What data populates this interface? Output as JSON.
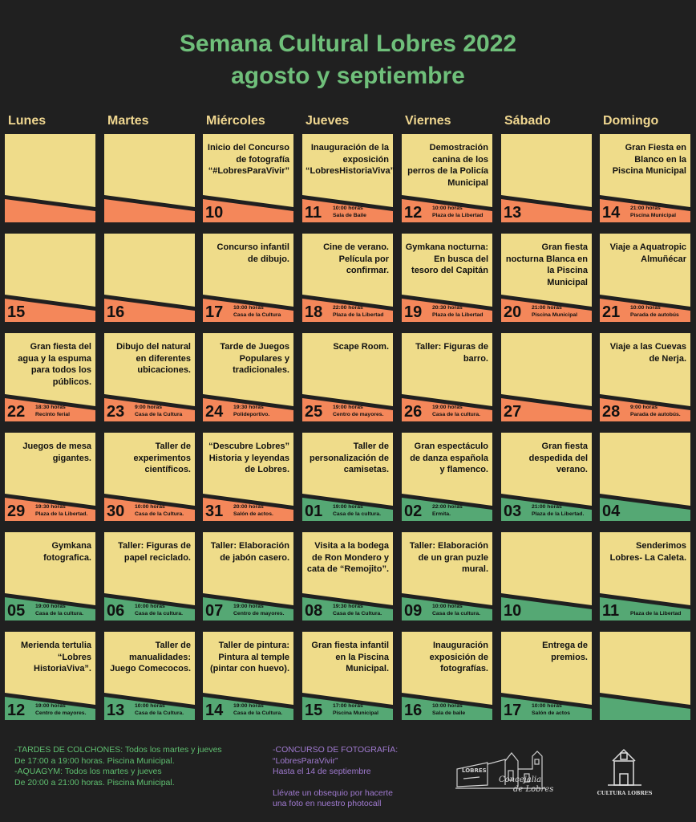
{
  "header": {
    "title": "Semana Cultural Lobres 2022",
    "subtitle": "agosto y septiembre"
  },
  "days": [
    "Lunes",
    "Martes",
    "Miércoles",
    "Jueves",
    "Viernes",
    "Sábado",
    "Domingo"
  ],
  "colors": {
    "yellow": "#efdc8a",
    "orange": "#f4875a",
    "green": "#55a874",
    "title_green": "#6fbf7a",
    "day_color": "#f0d790",
    "bg": "#202020"
  },
  "weeks": [
    [
      {
        "num": "",
        "color": "orange",
        "text": "",
        "time": "",
        "place": ""
      },
      {
        "num": "",
        "color": "orange",
        "text": "",
        "time": "",
        "place": ""
      },
      {
        "num": "10",
        "color": "orange",
        "text": "Inicio del Concurso de fotografía “#LobresParaVivir”",
        "time": "",
        "place": ""
      },
      {
        "num": "11",
        "color": "orange",
        "text": "Inauguración de la exposición “LobresHistoriaViva”",
        "time": "10:00 horas",
        "place": "Sala de Baile"
      },
      {
        "num": "12",
        "color": "orange",
        "text": "Demostración canina de los perros de la Policía Municipal",
        "time": "10:00 horas",
        "place": "Plaza de la Libertad"
      },
      {
        "num": "13",
        "color": "orange",
        "text": "",
        "time": "",
        "place": ""
      },
      {
        "num": "14",
        "color": "orange",
        "text": "Gran Fiesta en Blanco en la Piscina Municipal",
        "time": "21:00 horas",
        "place": "Piscina Municipal"
      }
    ],
    [
      {
        "num": "15",
        "color": "orange",
        "text": "",
        "time": "",
        "place": ""
      },
      {
        "num": "16",
        "color": "orange",
        "text": "",
        "time": "",
        "place": ""
      },
      {
        "num": "17",
        "color": "orange",
        "text": "Concurso infantil de dibujo.",
        "time": "10:00 horas",
        "place": "Casa de la Cultura"
      },
      {
        "num": "18",
        "color": "orange",
        "text": "Cine de verano. Película por confirmar.",
        "time": "22:00 horas",
        "place": "Plaza de la Libertad"
      },
      {
        "num": "19",
        "color": "orange",
        "text": "Gymkana nocturna: En busca del tesoro del Capitán",
        "time": "20:30 horas",
        "place": "Plaza de la Libertad"
      },
      {
        "num": "20",
        "color": "orange",
        "text": "Gran fiesta nocturna Blanca en la Piscina Municipal",
        "time": "21:00 horas",
        "place": "Piscina Municipal"
      },
      {
        "num": "21",
        "color": "orange",
        "text": "Viaje a Aquatropic Almuñécar",
        "time": "10:00 horas",
        "place": "Parada de autobús"
      }
    ],
    [
      {
        "num": "22",
        "color": "orange",
        "text": "Gran fiesta del agua y la espuma para todos los públicos.",
        "time": "18:30 horas",
        "place": "Recinto ferial"
      },
      {
        "num": "23",
        "color": "orange",
        "text": "Dibujo del natural en diferentes ubicaciones.",
        "time": "9:00 horas",
        "place": "Casa de la Cultura"
      },
      {
        "num": "24",
        "color": "orange",
        "text": "Tarde de Juegos Populares y tradicionales.",
        "time": "19:30 horas",
        "place": "Polideportivo."
      },
      {
        "num": "25",
        "color": "orange",
        "text": "Scape Room.",
        "time": "19:00 horas",
        "place": "Centro de mayores."
      },
      {
        "num": "26",
        "color": "orange",
        "text": "Taller: Figuras de barro.",
        "time": "19:00 horas",
        "place": "Casa de la cultura."
      },
      {
        "num": "27",
        "color": "orange",
        "text": "",
        "time": "",
        "place": ""
      },
      {
        "num": "28",
        "color": "orange",
        "text": "Viaje a las Cuevas de Nerja.",
        "time": "9:00 horas",
        "place": "Parada de autobús."
      }
    ],
    [
      {
        "num": "29",
        "color": "orange",
        "text": "Juegos de mesa gigantes.",
        "time": "19:30 horas",
        "place": "Plaza de la Libertad."
      },
      {
        "num": "30",
        "color": "orange",
        "text": "Taller de experimentos científicos.",
        "time": "10:00 horas",
        "place": "Casa de la Cultura."
      },
      {
        "num": "31",
        "color": "orange",
        "text": "“Descubre Lobres” Historia y leyendas de Lobres.",
        "time": "20:00 horas",
        "place": "Salón de actos."
      },
      {
        "num": "01",
        "color": "green",
        "text": "Taller de personalización de camisetas.",
        "time": "19:00 horas",
        "place": "Casa de la cultura."
      },
      {
        "num": "02",
        "color": "green",
        "text": "Gran espectáculo de danza española y flamenco.",
        "time": "22:00 horas",
        "place": "Ermita."
      },
      {
        "num": "03",
        "color": "green",
        "text": "Gran fiesta despedida del verano.",
        "time": "21:00 horas",
        "place": "Plaza de la Libertad."
      },
      {
        "num": "04",
        "color": "green",
        "text": "",
        "time": "",
        "place": ""
      }
    ],
    [
      {
        "num": "05",
        "color": "green",
        "text": "Gymkana fotografica.",
        "time": "19:00 horas",
        "place": "Casa de la cultura."
      },
      {
        "num": "06",
        "color": "green",
        "text": "Taller: Figuras de papel reciclado.",
        "time": "10:00 horas",
        "place": "Casa de la cultura."
      },
      {
        "num": "07",
        "color": "green",
        "text": "Taller: Elaboración de jabón casero.",
        "time": "19:00 horas",
        "place": "Centro de mayores."
      },
      {
        "num": "08",
        "color": "green",
        "text": "Visita a la bodega de Ron Mondero y cata de “Remojito”.",
        "time": "19:30 horas",
        "place": "Casa de la Cultura."
      },
      {
        "num": "09",
        "color": "green",
        "text": "Taller: Elaboración de un gran puzle mural.",
        "time": "10:00 horas",
        "place": "Casa de la cultura."
      },
      {
        "num": "10",
        "color": "green",
        "text": "",
        "time": "",
        "place": ""
      },
      {
        "num": "11",
        "color": "green",
        "text": "Senderimos Lobres- La Caleta.",
        "time": "",
        "place": "Plaza de la Libertad"
      }
    ],
    [
      {
        "num": "12",
        "color": "green",
        "text": "Merienda tertulia “Lobres HistoriaViva”.",
        "time": "19:00 horas",
        "place": "Centro de mayores."
      },
      {
        "num": "13",
        "color": "green",
        "text": "Taller de manualidades: Juego Comecocos.",
        "time": "10:00 horas",
        "place": "Casa de la Cultura."
      },
      {
        "num": "14",
        "color": "green",
        "text": "Taller de pintura: Pintura al temple (pintar con huevo).",
        "time": "19:00 horas",
        "place": "Casa de la Cultura."
      },
      {
        "num": "15",
        "color": "green",
        "text": "Gran fiesta infantil en la Piscina Municipal.",
        "time": "17:00 horas",
        "place": "Piscina Municipal"
      },
      {
        "num": "16",
        "color": "green",
        "text": "Inauguración exposición de fotografías.",
        "time": "10:00 horas",
        "place": "Sala de baile"
      },
      {
        "num": "17",
        "color": "green",
        "text": "Entrega de premios.",
        "time": "10:00 horas",
        "place": "Salón de actos"
      },
      {
        "num": "",
        "color": "green",
        "text": "",
        "time": "",
        "place": ""
      }
    ]
  ],
  "footer": {
    "left": [
      "-TARDES DE COLCHONES: Todos los martes y jueves",
      "De 17:00 a 19:00 horas. Piscina Municipal.",
      "-AQUAGYM: Todos los martes y jueves",
      "De 20:00 a 21:00 horas. Piscina Municipal."
    ],
    "middle": [
      "-CONCURSO DE FOTOGRAFÍA:",
      "“LobresParaVivir”",
      "Hasta el 14 de septiembre",
      "",
      "Llévate un obsequio por hacerte",
      "una foto en nuestro photocall"
    ],
    "logo1_line1": "Concejalia",
    "logo1_line2": "de Lobres",
    "logo1_sign": "LOBRES",
    "logo2_text": "CULTURA LOBRES"
  }
}
